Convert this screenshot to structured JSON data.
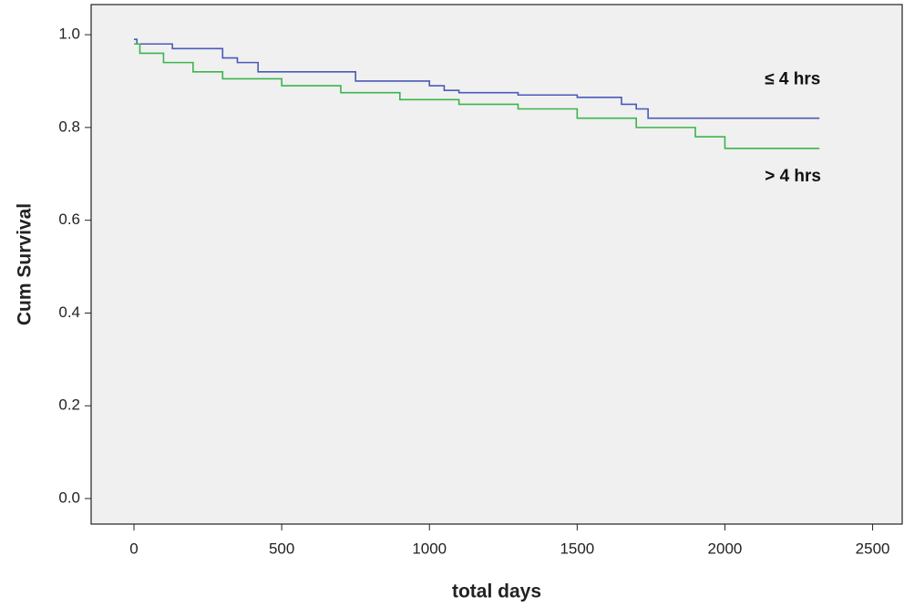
{
  "chart_data": {
    "type": "line",
    "step": "post",
    "xlabel": "total days",
    "ylabel": "Cum Survival",
    "xlim": [
      -145,
      2600
    ],
    "ylim": [
      -0.055,
      1.065
    ],
    "xticks": [
      0,
      500,
      1000,
      1500,
      2000,
      2500
    ],
    "yticks": [
      {
        "value": 0,
        "label": "0.0"
      },
      0.2,
      0.4,
      0.6,
      0.8,
      {
        "value": 1,
        "label": "1.0"
      }
    ],
    "series": [
      {
        "name": "≤ 4 hrs",
        "color": "#4a5ab8",
        "x": [
          0,
          10,
          130,
          300,
          350,
          420,
          750,
          1000,
          1050,
          1100,
          1300,
          1500,
          1650,
          1700,
          1740,
          2320
        ],
        "values": [
          0.99,
          0.98,
          0.97,
          0.95,
          0.94,
          0.92,
          0.9,
          0.89,
          0.88,
          0.875,
          0.87,
          0.865,
          0.85,
          0.84,
          0.82,
          0.82
        ]
      },
      {
        "name": "> 4 hrs",
        "color": "#3cb44b",
        "x": [
          0,
          20,
          100,
          200,
          300,
          500,
          700,
          900,
          1100,
          1300,
          1500,
          1700,
          1900,
          2000,
          2320
        ],
        "values": [
          0.98,
          0.96,
          0.94,
          0.92,
          0.905,
          0.89,
          0.875,
          0.86,
          0.85,
          0.84,
          0.82,
          0.8,
          0.78,
          0.755,
          0.755
        ]
      }
    ]
  }
}
